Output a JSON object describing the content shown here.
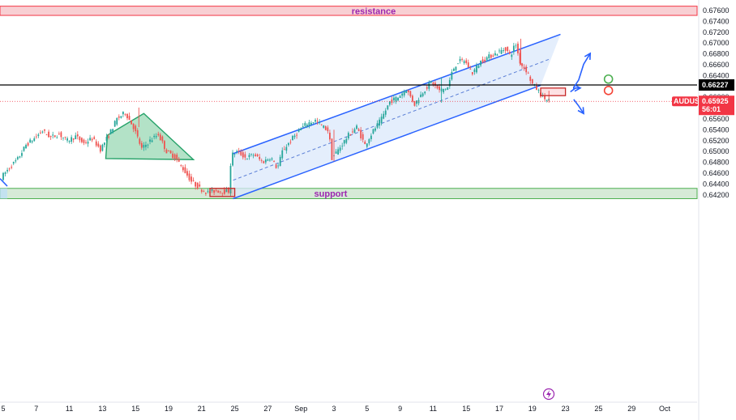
{
  "chart_data": {
    "type": "candlestick",
    "symbol": "AUDUSD",
    "ylim": [
      0.6413,
      0.6764
    ],
    "y_ticks": [
      "0.67600",
      "0.67400",
      "0.67200",
      "0.67000",
      "0.66800",
      "0.66600",
      "0.66400",
      "0.66200",
      "0.66000",
      "0.65800",
      "0.65600",
      "0.65400",
      "0.65200",
      "0.65000",
      "0.64800",
      "0.64600",
      "0.64400",
      "0.64200"
    ],
    "x_ticks": [
      {
        "label": "5",
        "d": 0
      },
      {
        "label": "7",
        "d": 2
      },
      {
        "label": "11",
        "d": 4
      },
      {
        "label": "13",
        "d": 6
      },
      {
        "label": "15",
        "d": 8
      },
      {
        "label": "19",
        "d": 10
      },
      {
        "label": "21",
        "d": 12
      },
      {
        "label": "25",
        "d": 14
      },
      {
        "label": "27",
        "d": 16
      },
      {
        "label": "Sep",
        "d": 18
      },
      {
        "label": "3",
        "d": 20
      },
      {
        "label": "5",
        "d": 22
      },
      {
        "label": "9",
        "d": 24
      },
      {
        "label": "11",
        "d": 26
      },
      {
        "label": "15",
        "d": 28
      },
      {
        "label": "17",
        "d": 30
      },
      {
        "label": "19",
        "d": 32
      },
      {
        "label": "23",
        "d": 34
      },
      {
        "label": "25",
        "d": 36
      },
      {
        "label": "29",
        "d": 38
      },
      {
        "label": "Oct",
        "d": 40
      }
    ],
    "resistance": {
      "label": "resistance",
      "low": 0.6751,
      "high": 0.6768
    },
    "support": {
      "label": "support",
      "low": 0.6413,
      "high": 0.6432
    },
    "level_line": {
      "value": 0.66227,
      "label": "0.66227"
    },
    "current_price": {
      "value": 0.65925,
      "symbol_tag": "AUDUSD",
      "value_tag": "0.65925",
      "countdown": "56:01"
    },
    "price_path": [
      [
        0,
        0.6452
      ],
      [
        0.5,
        0.647
      ],
      [
        1,
        0.6486
      ],
      [
        1.5,
        0.6512
      ],
      [
        2,
        0.6524
      ],
      [
        2.5,
        0.6538
      ],
      [
        3,
        0.6526
      ],
      [
        3.5,
        0.6532
      ],
      [
        4,
        0.652
      ],
      [
        4.5,
        0.6528
      ],
      [
        5,
        0.6515
      ],
      [
        5.5,
        0.6524
      ],
      [
        6,
        0.6504
      ],
      [
        6.5,
        0.653
      ],
      [
        7,
        0.656
      ],
      [
        7.5,
        0.6572
      ],
      [
        8,
        0.6545
      ],
      [
        8.5,
        0.6505
      ],
      [
        9,
        0.652
      ],
      [
        9.5,
        0.6532
      ],
      [
        10,
        0.65
      ],
      [
        10.5,
        0.649
      ],
      [
        11,
        0.6468
      ],
      [
        11.5,
        0.6445
      ],
      [
        12,
        0.6432
      ],
      [
        12.5,
        0.6424
      ],
      [
        13,
        0.6428
      ],
      [
        13.5,
        0.6426
      ],
      [
        13.8,
        0.6427
      ],
      [
        13.9,
        0.6493
      ],
      [
        14.3,
        0.65
      ],
      [
        14.8,
        0.6488
      ],
      [
        15.3,
        0.6495
      ],
      [
        15.8,
        0.648
      ],
      [
        16.3,
        0.649
      ],
      [
        16.7,
        0.6468
      ],
      [
        17,
        0.65
      ],
      [
        17.5,
        0.652
      ],
      [
        18,
        0.6538
      ],
      [
        18.5,
        0.6552
      ],
      [
        19,
        0.6557
      ],
      [
        19.5,
        0.6545
      ],
      [
        19.8,
        0.6538
      ],
      [
        20,
        0.6488
      ],
      [
        20.5,
        0.6508
      ],
      [
        21,
        0.653
      ],
      [
        21.5,
        0.6545
      ],
      [
        22,
        0.6512
      ],
      [
        22.5,
        0.6538
      ],
      [
        23,
        0.656
      ],
      [
        23.5,
        0.6592
      ],
      [
        24,
        0.66
      ],
      [
        24.5,
        0.6615
      ],
      [
        25,
        0.6587
      ],
      [
        25.5,
        0.661
      ],
      [
        26,
        0.6628
      ],
      [
        26.5,
        0.6612
      ],
      [
        27,
        0.6618
      ],
      [
        27.3,
        0.665
      ],
      [
        27.6,
        0.6665
      ],
      [
        28,
        0.6668
      ],
      [
        28.5,
        0.6645
      ],
      [
        29,
        0.6666
      ],
      [
        29.5,
        0.6675
      ],
      [
        30,
        0.6682
      ],
      [
        30.5,
        0.669
      ],
      [
        30.8,
        0.6676
      ],
      [
        31.1,
        0.67
      ],
      [
        31.4,
        0.6662
      ],
      [
        31.8,
        0.6648
      ],
      [
        32.1,
        0.6625
      ],
      [
        32.4,
        0.6615
      ],
      [
        32.7,
        0.6602
      ],
      [
        33,
        0.6595
      ]
    ],
    "triangle": [
      [
        6.3,
        0.653
      ],
      [
        8.5,
        0.657
      ],
      [
        11.5,
        0.6485
      ],
      [
        6.2,
        0.6487
      ]
    ],
    "channel": {
      "lower": [
        [
          13.9,
          0.6413
        ],
        [
          32.5,
          0.6622
        ]
      ],
      "upper": [
        [
          13.9,
          0.6496
        ],
        [
          33.7,
          0.6716
        ]
      ],
      "mid": [
        [
          13.9,
          0.6447
        ],
        [
          33.0,
          0.667
        ]
      ]
    },
    "box_support": [
      [
        12.5,
        0.6417
      ],
      [
        14.0,
        0.6432
      ]
    ],
    "box_current": [
      [
        32.5,
        0.6603
      ],
      [
        34.0,
        0.6617
      ]
    ],
    "arrows": [
      {
        "direction": "up",
        "path": [
          [
            34.5,
            0.662
          ],
          [
            34.5,
            0.6618
          ],
          [
            34.8,
            0.6632
          ],
          [
            35.1,
            0.6661
          ],
          [
            35.5,
            0.6681
          ]
        ]
      },
      {
        "direction": "down",
        "path": [
          [
            34.5,
            0.6596
          ],
          [
            34.8,
            0.6584
          ],
          [
            35.1,
            0.657
          ]
        ]
      },
      {
        "direction": "right",
        "path": [
          [
            34.3,
            0.661
          ],
          [
            34.6,
            0.6617
          ],
          [
            34.9,
            0.6617
          ]
        ]
      }
    ],
    "circles": [
      {
        "color": "#4caf50",
        "d": 36.6,
        "v": 0.66335
      },
      {
        "color": "#f44336",
        "d": 36.6,
        "v": 0.66125
      }
    ]
  },
  "colors": {
    "up": "#26a69a",
    "down": "#ef5350",
    "channel": "#2962ff",
    "resistance_fill": "#f8cfd3",
    "resistance_line": "#f23645",
    "support_fill": "#d6ead7",
    "support_line": "#4caf50",
    "triangle_fill": "#9ad8b4",
    "triangle_line": "#26a269",
    "price_tag": "#f23645",
    "axis_text": "#131722"
  },
  "icons": {
    "event_marker": "lightning-icon"
  }
}
